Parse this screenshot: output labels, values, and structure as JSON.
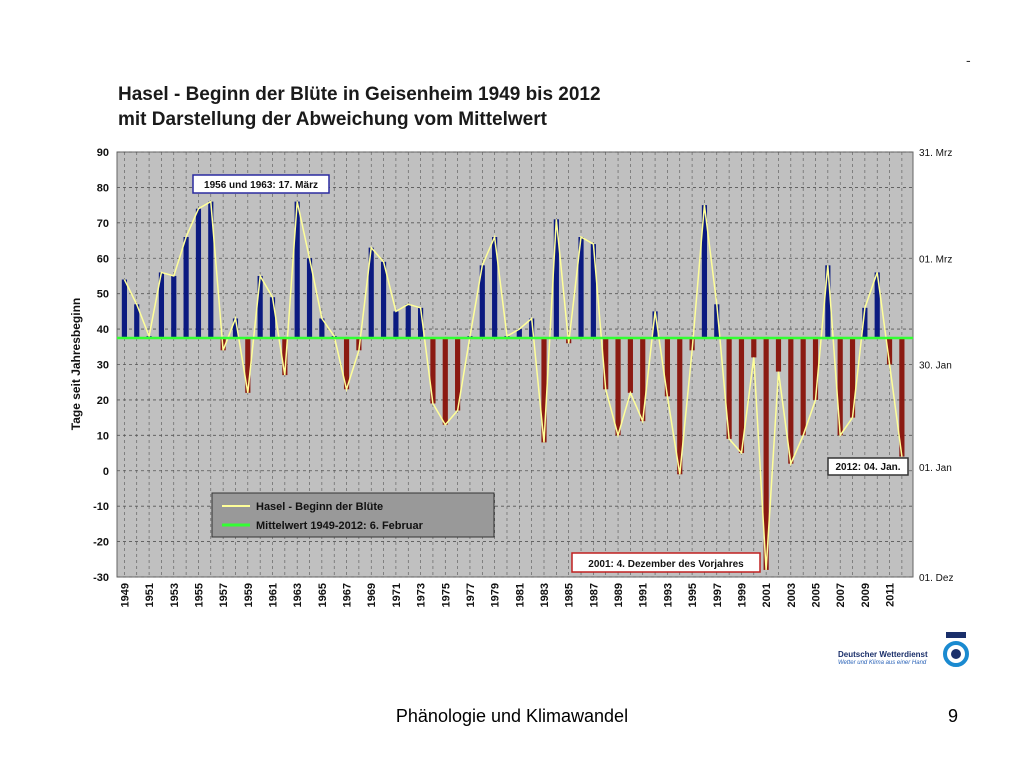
{
  "header": {
    "title_line1": "Hasel - Beginn der Blüte in Geisenheim 1949 bis 2012",
    "title_line2": "mit Darstellung der Abweichung vom Mittelwert",
    "corner_mark": "-"
  },
  "footer": {
    "text": "Phänologie und Klimawandel",
    "page_number": "9"
  },
  "logo": {
    "name": "Deutscher Wetterdienst",
    "tagline": "Wetter und Klima aus einer Hand",
    "icon": "dwd-logo-icon"
  },
  "colors": {
    "plot_bg": "#c0c0c0",
    "above_bar": "#0b1a80",
    "below_bar": "#8b1a12",
    "line": "#ffff99",
    "mean": "#33ff33",
    "grid": "#555555"
  },
  "chart_data": {
    "type": "bar",
    "title": "Hasel - Beginn der Blüte in Geisenheim 1949 bis 2012",
    "ylabel": "Tage seit Jahresbeginn",
    "ylim": [
      -30,
      90
    ],
    "yticks": [
      90,
      80,
      70,
      60,
      50,
      40,
      30,
      20,
      10,
      0,
      -10,
      -20,
      -30
    ],
    "right_axis_labels": [
      {
        "label": "31. Mrz",
        "value": 90
      },
      {
        "label": "01. Mrz",
        "value": 60
      },
      {
        "label": "30. Jan",
        "value": 30
      },
      {
        "label": "01. Jan",
        "value": 1
      },
      {
        "label": "01. Dez",
        "value": -30
      }
    ],
    "mean": 37.5,
    "years": [
      1949,
      1950,
      1951,
      1952,
      1953,
      1954,
      1955,
      1956,
      1957,
      1958,
      1959,
      1960,
      1961,
      1962,
      1963,
      1964,
      1965,
      1966,
      1967,
      1968,
      1969,
      1970,
      1971,
      1972,
      1973,
      1974,
      1975,
      1976,
      1977,
      1978,
      1979,
      1980,
      1981,
      1982,
      1983,
      1984,
      1985,
      1986,
      1987,
      1988,
      1989,
      1990,
      1991,
      1992,
      1993,
      1994,
      1995,
      1996,
      1997,
      1998,
      1999,
      2000,
      2001,
      2002,
      2003,
      2004,
      2005,
      2006,
      2007,
      2008,
      2009,
      2010,
      2011,
      2012
    ],
    "xtick_labels": [
      "1949",
      "1951",
      "1953",
      "1955",
      "1957",
      "1959",
      "1961",
      "1963",
      "1965",
      "1967",
      "1969",
      "1971",
      "1973",
      "1975",
      "1977",
      "1979",
      "1981",
      "1983",
      "1985",
      "1987",
      "1989",
      "1991",
      "1993",
      "1995",
      "1997",
      "1999",
      "2001",
      "2003",
      "2005",
      "2007",
      "2009",
      "2011"
    ],
    "values": [
      54,
      47,
      38,
      56,
      55,
      66,
      74,
      76,
      34,
      43,
      22,
      55,
      49,
      27,
      76,
      60,
      43,
      38,
      23,
      34,
      63,
      59,
      45,
      47,
      46,
      19,
      13,
      17,
      38,
      58,
      66,
      38,
      40,
      43,
      8,
      71,
      36,
      66,
      64,
      23,
      10,
      22,
      14,
      45,
      21,
      -1,
      34,
      75,
      47,
      9,
      5,
      32,
      -28,
      28,
      2,
      10,
      20,
      58,
      10,
      15,
      46,
      56,
      30,
      4
    ],
    "series": [
      {
        "name": "Hasel - Beginn der Blüte",
        "type": "line"
      },
      {
        "name": "Mittelwert 1949-2012: 6. Februar",
        "type": "line"
      }
    ],
    "annotations": [
      {
        "text": "1956 und 1963: 17. März",
        "border": "#2a2aa0"
      },
      {
        "text": "2012: 04. Jan.",
        "border": "#333333"
      },
      {
        "text": "2001: 4. Dezember des Vorjahres",
        "border": "#c02020"
      }
    ],
    "grid": true,
    "legend_position": "bottom-left"
  }
}
